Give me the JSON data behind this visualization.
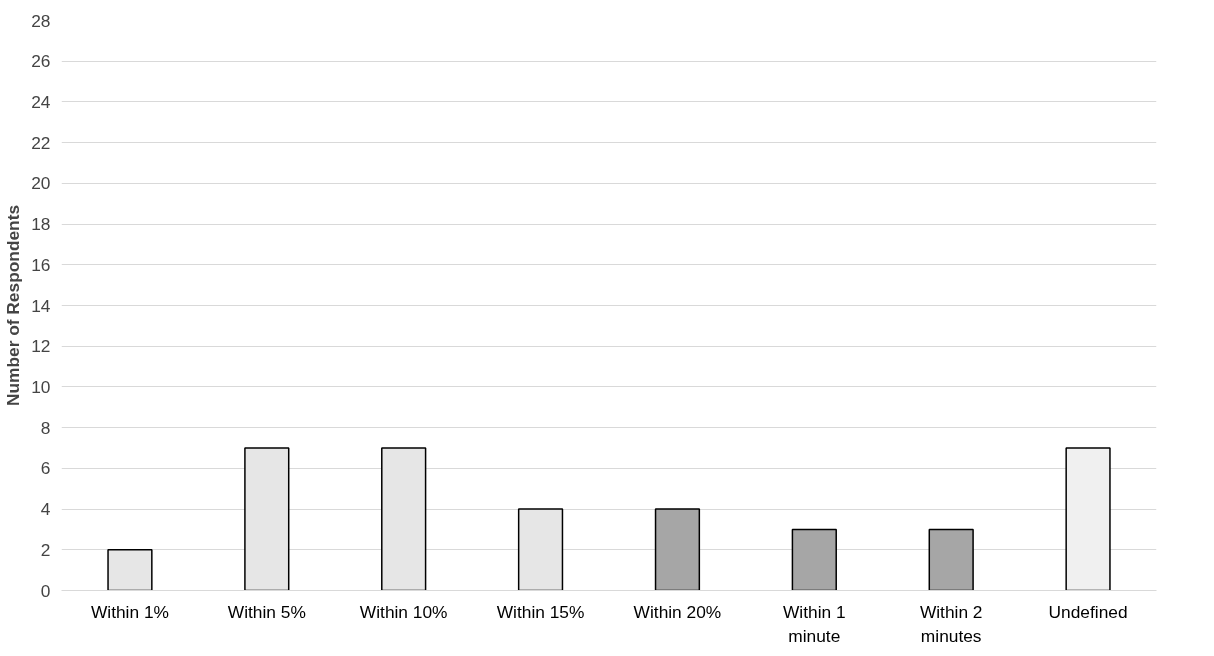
{
  "chart_data": {
    "type": "bar",
    "ylabel": "Number of Respondents",
    "categories": [
      "Within 1%",
      "Within 5%",
      "Within 10%",
      "Within 15%",
      "Within 20%",
      "Within 1 minute",
      "Within 2 minutes",
      "Undefined"
    ],
    "values": [
      2,
      7,
      7,
      4,
      4,
      3,
      3,
      7
    ],
    "colors": [
      "#e6e6e6",
      "#e6e6e6",
      "#e6e6e6",
      "#e6e6e6",
      "#a6a6a6",
      "#a6a6a6",
      "#a6a6a6",
      "#f0f0f0"
    ],
    "ylim": [
      0,
      28
    ],
    "yticks": [
      0,
      2,
      4,
      6,
      8,
      10,
      12,
      14,
      16,
      18,
      20,
      22,
      24,
      26,
      28
    ],
    "grid": "y"
  }
}
